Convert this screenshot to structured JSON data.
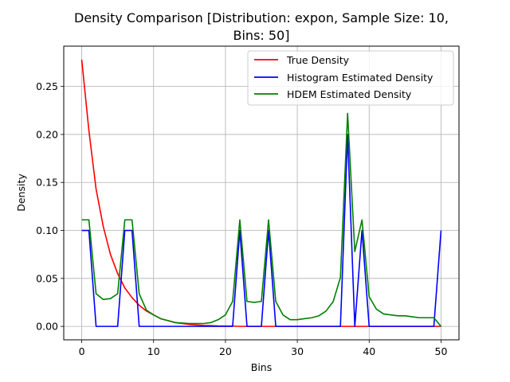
{
  "chart_data": {
    "type": "line",
    "title_line1": "Density Comparison [Distribution: expon, Sample Size: 10,",
    "title_line2": "Bins: 50]",
    "xlabel": "Bins",
    "ylabel": "Density",
    "xlim": [
      -2.5,
      52.5
    ],
    "ylim": [
      -0.014,
      0.292
    ],
    "xticks": [
      0,
      10,
      20,
      30,
      40,
      50
    ],
    "yticks": [
      0.0,
      0.05,
      0.1,
      0.15,
      0.2,
      0.25
    ],
    "xtick_labels": [
      "0",
      "10",
      "20",
      "30",
      "40",
      "50"
    ],
    "ytick_labels": [
      "0.00",
      "0.05",
      "0.10",
      "0.15",
      "0.20",
      "0.25"
    ],
    "grid": true,
    "legend_position": "top-right",
    "series": [
      {
        "name": "True Density",
        "color": "#ff0000",
        "x": [
          0,
          1,
          2,
          3,
          4,
          5,
          6,
          7,
          8,
          9,
          10,
          11,
          12,
          13,
          14,
          15,
          16,
          17,
          18,
          19,
          20,
          21,
          22,
          23,
          24,
          25,
          26,
          27,
          28,
          29,
          30,
          31,
          32,
          33,
          34,
          35,
          36,
          37,
          38,
          39,
          40,
          41,
          42,
          43,
          44,
          45,
          46,
          47,
          48,
          49,
          50
        ],
        "y": [
          0.278,
          0.204,
          0.143,
          0.104,
          0.075,
          0.055,
          0.04,
          0.03,
          0.022,
          0.016,
          0.012,
          0.008,
          0.006,
          0.004,
          0.003,
          0.002,
          0.0015,
          0.001,
          0.0008,
          0.0005,
          0.0004,
          0.0003,
          0,
          0,
          0,
          0,
          0,
          0,
          0,
          0,
          0,
          0,
          0,
          0,
          0,
          0,
          0,
          0,
          0,
          0,
          0,
          0,
          0,
          0,
          0,
          0,
          0,
          0,
          0,
          0,
          0
        ]
      },
      {
        "name": "Histogram Estimated Density",
        "color": "#0000ff",
        "x": [
          0,
          1,
          2,
          3,
          4,
          5,
          6,
          7,
          8,
          9,
          10,
          11,
          12,
          13,
          14,
          15,
          16,
          17,
          18,
          19,
          20,
          21,
          22,
          23,
          24,
          25,
          26,
          27,
          28,
          29,
          30,
          31,
          32,
          33,
          34,
          35,
          36,
          37,
          38,
          39,
          40,
          41,
          42,
          43,
          44,
          45,
          46,
          47,
          48,
          49,
          50
        ],
        "y": [
          0.1,
          0.1,
          0,
          0,
          0,
          0,
          0.1,
          0.1,
          0,
          0,
          0,
          0,
          0,
          0,
          0,
          0,
          0,
          0,
          0,
          0,
          0,
          0,
          0.1,
          0,
          0,
          0,
          0.1,
          0,
          0,
          0,
          0,
          0,
          0,
          0,
          0,
          0,
          0,
          0.2,
          0,
          0.1,
          0,
          0,
          0,
          0,
          0,
          0,
          0,
          0,
          0,
          0,
          0.1
        ]
      },
      {
        "name": "HDEM Estimated Density",
        "color": "#008000",
        "x": [
          0,
          1,
          2,
          3,
          4,
          5,
          6,
          7,
          8,
          9,
          10,
          11,
          12,
          13,
          14,
          15,
          16,
          17,
          18,
          19,
          20,
          21,
          22,
          23,
          24,
          25,
          26,
          27,
          28,
          29,
          30,
          31,
          32,
          33,
          34,
          35,
          36,
          37,
          38,
          39,
          40,
          41,
          42,
          43,
          44,
          45,
          46,
          47,
          48,
          49,
          50
        ],
        "y": [
          0.111,
          0.111,
          0.034,
          0.028,
          0.029,
          0.034,
          0.111,
          0.111,
          0.034,
          0.017,
          0.012,
          0.008,
          0.006,
          0.004,
          0.0035,
          0.003,
          0.003,
          0.003,
          0.004,
          0.007,
          0.012,
          0.026,
          0.111,
          0.026,
          0.025,
          0.026,
          0.111,
          0.026,
          0.012,
          0.007,
          0.007,
          0.008,
          0.009,
          0.011,
          0.016,
          0.026,
          0.051,
          0.222,
          0.078,
          0.111,
          0.031,
          0.018,
          0.013,
          0.012,
          0.011,
          0.011,
          0.01,
          0.009,
          0.009,
          0.009,
          0
        ]
      }
    ]
  }
}
